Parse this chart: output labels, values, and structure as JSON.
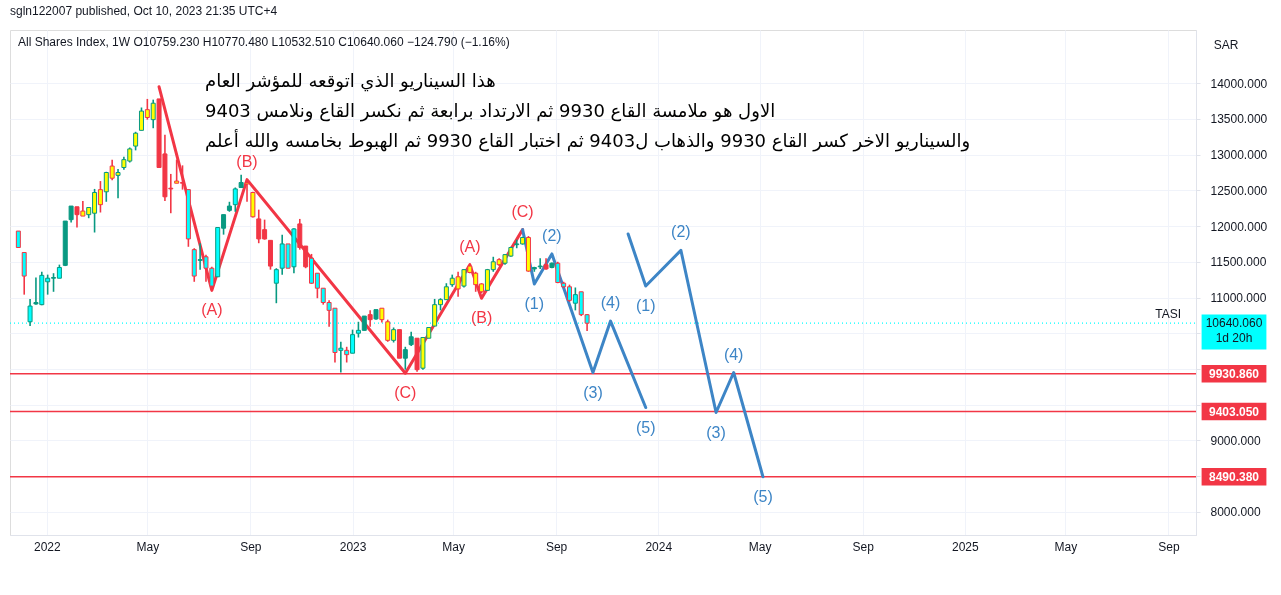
{
  "chart_data": {
    "type": "candlestick",
    "title": "sgln122007 published, Oct 10, 2023 21:35 UTC+4",
    "subtitle": "All Shares Index, 1W  O10759.230 H10770.480 L10532.510 C10640.060 −124.790 (−1.16%)",
    "ylabel": "SAR",
    "x": [
      "2021-11-28",
      "2021-12-05",
      "2021-12-12",
      "2021-12-19",
      "2021-12-26",
      "2022-01-02",
      "2022-01-09",
      "2022-01-16",
      "2022-01-23",
      "2022-01-30",
      "2022-02-06",
      "2022-02-13",
      "2022-02-20",
      "2022-02-27",
      "2022-03-06",
      "2022-03-13",
      "2022-03-20",
      "2022-03-27",
      "2022-04-03",
      "2022-04-10",
      "2022-04-17",
      "2022-04-24",
      "2022-05-01",
      "2022-05-08",
      "2022-05-15",
      "2022-05-22",
      "2022-05-29",
      "2022-06-05",
      "2022-06-12",
      "2022-06-19",
      "2022-06-26",
      "2022-07-03",
      "2022-07-10",
      "2022-07-17",
      "2022-07-24",
      "2022-07-31",
      "2022-08-07",
      "2022-08-14",
      "2022-08-21",
      "2022-08-28",
      "2022-09-04",
      "2022-09-11",
      "2022-09-18",
      "2022-09-25",
      "2022-10-02",
      "2022-10-09",
      "2022-10-16",
      "2022-10-23",
      "2022-10-30",
      "2022-11-06",
      "2022-11-13",
      "2022-11-20",
      "2022-11-27",
      "2022-12-04",
      "2022-12-11",
      "2022-12-18",
      "2022-12-25",
      "2023-01-01",
      "2023-01-08",
      "2023-01-15",
      "2023-01-22",
      "2023-01-29",
      "2023-02-05",
      "2023-02-12",
      "2023-02-19",
      "2023-02-26",
      "2023-03-05",
      "2023-03-12",
      "2023-03-19",
      "2023-03-26",
      "2023-04-02",
      "2023-04-09",
      "2023-04-16",
      "2023-04-23",
      "2023-04-30",
      "2023-05-07",
      "2023-05-14",
      "2023-05-21",
      "2023-05-28",
      "2023-06-04",
      "2023-06-11",
      "2023-06-18",
      "2023-06-25",
      "2023-07-02",
      "2023-07-09",
      "2023-07-16",
      "2023-07-23",
      "2023-07-30",
      "2023-08-06",
      "2023-08-13",
      "2023-08-20",
      "2023-08-27",
      "2023-09-03",
      "2023-09-10",
      "2023-09-17",
      "2023-09-24",
      "2023-10-01",
      "2023-10-08"
    ],
    "ohlc": [
      [
        11930,
        11930,
        11700,
        11700
      ],
      [
        11630,
        11630,
        11040,
        11300
      ],
      [
        10660,
        10980,
        10600,
        10880
      ],
      [
        10910,
        11280,
        10900,
        10930
      ],
      [
        10900,
        11360,
        10890,
        11310
      ],
      [
        11220,
        11320,
        11040,
        11270
      ],
      [
        11270,
        11340,
        11080,
        11280
      ],
      [
        11270,
        11460,
        11270,
        11420
      ],
      [
        11450,
        12070,
        11440,
        12070
      ],
      [
        12090,
        12280,
        12050,
        12280
      ],
      [
        12270,
        12270,
        11980,
        12160
      ],
      [
        12210,
        12350,
        12140,
        12140
      ],
      [
        12160,
        12260,
        12110,
        12260
      ],
      [
        12180,
        12520,
        11910,
        12470
      ],
      [
        12510,
        12630,
        12190,
        12300
      ],
      [
        12480,
        12760,
        12340,
        12750
      ],
      [
        12840,
        12930,
        12640,
        12670
      ],
      [
        12710,
        12800,
        12390,
        12750
      ],
      [
        12820,
        12970,
        12790,
        12930
      ],
      [
        12910,
        13100,
        12890,
        13080
      ],
      [
        13120,
        13320,
        13060,
        13300
      ],
      [
        13340,
        13660,
        13340,
        13610
      ],
      [
        13630,
        13780,
        13490,
        13520
      ],
      [
        13490,
        13770,
        13370,
        13720
      ],
      [
        13780,
        13780,
        12820,
        12820
      ],
      [
        13010,
        13280,
        12350,
        12410
      ],
      [
        12530,
        12730,
        12180,
        12520
      ],
      [
        12630,
        12930,
        12600,
        12600
      ],
      [
        12610,
        12850,
        12510,
        12600
      ],
      [
        12510,
        12510,
        11710,
        11820
      ],
      [
        11670,
        11690,
        11220,
        11300
      ],
      [
        11520,
        11760,
        11390,
        11530
      ],
      [
        11570,
        11600,
        11220,
        11410
      ],
      [
        11410,
        11430,
        11110,
        11160
      ],
      [
        11290,
        11980,
        11290,
        11980
      ],
      [
        11970,
        12160,
        11880,
        12160
      ],
      [
        12220,
        12340,
        12200,
        12280
      ],
      [
        12300,
        12540,
        12200,
        12520
      ],
      [
        12540,
        12720,
        12540,
        12610
      ],
      [
        12610,
        12660,
        12340,
        12590
      ],
      [
        12470,
        12480,
        12120,
        12130
      ],
      [
        12100,
        12230,
        11760,
        11820
      ],
      [
        11950,
        12090,
        11810,
        11820
      ],
      [
        11800,
        11800,
        11390,
        11440
      ],
      [
        11200,
        11410,
        10920,
        11390
      ],
      [
        11410,
        11880,
        11320,
        11750
      ],
      [
        11750,
        11750,
        11410,
        11410
      ],
      [
        11430,
        11970,
        11340,
        11960
      ],
      [
        12030,
        12100,
        11670,
        11700
      ],
      [
        11720,
        11720,
        11410,
        11430
      ],
      [
        11550,
        11610,
        11190,
        11200
      ],
      [
        11340,
        11340,
        10990,
        11130
      ],
      [
        11130,
        11130,
        10900,
        10930
      ],
      [
        10930,
        10960,
        10590,
        10820
      ],
      [
        10850,
        10850,
        10090,
        10230
      ],
      [
        10260,
        10380,
        9950,
        10290
      ],
      [
        10260,
        10310,
        10090,
        10200
      ],
      [
        10220,
        10550,
        10220,
        10480
      ],
      [
        10500,
        10660,
        10440,
        10540
      ],
      [
        10540,
        10740,
        10540,
        10740
      ],
      [
        10760,
        10820,
        10590,
        10690
      ],
      [
        10700,
        10830,
        10690,
        10830
      ],
      [
        10850,
        10850,
        10650,
        10690
      ],
      [
        10660,
        10690,
        10380,
        10400
      ],
      [
        10400,
        10580,
        10370,
        10550
      ],
      [
        10550,
        10550,
        10150,
        10150
      ],
      [
        10150,
        10310,
        9990,
        10270
      ],
      [
        10340,
        10520,
        10320,
        10450
      ],
      [
        10430,
        10430,
        9960,
        9990
      ],
      [
        10010,
        10440,
        9990,
        10440
      ],
      [
        10430,
        10580,
        10430,
        10580
      ],
      [
        10600,
        10980,
        10600,
        10900
      ],
      [
        10900,
        10990,
        10820,
        10970
      ],
      [
        10970,
        11200,
        10970,
        11150
      ],
      [
        11180,
        11320,
        11150,
        11270
      ],
      [
        11290,
        11360,
        11010,
        11120
      ],
      [
        11160,
        11400,
        11140,
        11390
      ],
      [
        11440,
        11470,
        11340,
        11350
      ],
      [
        11340,
        11360,
        11080,
        11180
      ],
      [
        11190,
        11200,
        11060,
        11080
      ],
      [
        11100,
        11400,
        11100,
        11390
      ],
      [
        11390,
        11570,
        11360,
        11500
      ],
      [
        11530,
        11550,
        11440,
        11460
      ],
      [
        11480,
        11610,
        11460,
        11600
      ],
      [
        11580,
        11710,
        11570,
        11700
      ],
      [
        11740,
        11810,
        11690,
        11750
      ],
      [
        11750,
        11850,
        11740,
        11840
      ],
      [
        11840,
        11860,
        11360,
        11370
      ],
      [
        11400,
        11430,
        11360,
        11420
      ],
      [
        11430,
        11550,
        11400,
        11440
      ],
      [
        11460,
        11550,
        11390,
        11400
      ],
      [
        11420,
        11490,
        11410,
        11480
      ],
      [
        11480,
        11500,
        11200,
        11210
      ],
      [
        11200,
        11220,
        11140,
        11150
      ],
      [
        11150,
        11180,
        10940,
        10960
      ],
      [
        10920,
        11140,
        10820,
        11040
      ],
      [
        11080,
        11080,
        10740,
        10760
      ],
      [
        10759.23,
        10770.48,
        10532.51,
        10640.06
      ]
    ],
    "colors": [
      "#00ffff",
      "#00ffff",
      "#00ffff",
      "#089981",
      "#00ffff",
      "#00ffff",
      "#089981",
      "#00ffff",
      "#089981",
      "#089981",
      "#f23645",
      "#ffff00",
      "#ffff00",
      "#ffff00",
      "#ffff00",
      "#ffff00",
      "#ffff00",
      "#ffff00",
      "#ffff00",
      "#ffff00",
      "#ffff00",
      "#ffff00",
      "#ffff00",
      "#ffff00",
      "#f23645",
      "#f23645",
      "#f23645",
      "#ffff00",
      "#f23645",
      "#00ffff",
      "#00ffff",
      "#089981",
      "#00ffff",
      "#00ffff",
      "#00ffff",
      "#089981",
      "#089981",
      "#00ffff",
      "#089981",
      "#ffff00",
      "#ffff00",
      "#f23645",
      "#f23645",
      "#f23645",
      "#00ffff",
      "#00ffff",
      "#00ffff",
      "#00ffff",
      "#f23645",
      "#f23645",
      "#00ffff",
      "#00ffff",
      "#00ffff",
      "#00ffff",
      "#00ffff",
      "#00ffff",
      "#00ffff",
      "#00ffff",
      "#00ffff",
      "#089981",
      "#f23645",
      "#089981",
      "#ffff00",
      "#ffff00",
      "#ffff00",
      "#f23645",
      "#089981",
      "#089981",
      "#f23645",
      "#ffff00",
      "#ffff00",
      "#ffff00",
      "#ffff00",
      "#ffff00",
      "#ffff00",
      "#ffff00",
      "#ffff00",
      "#ffff00",
      "#ffff00",
      "#ffff00",
      "#ffff00",
      "#ffff00",
      "#ffff00",
      "#ffff00",
      "#ffff00",
      "#089981",
      "#ffff00",
      "#ffff00",
      "#089981",
      "#089981",
      "#f23645",
      "#089981",
      "#00ffff",
      "#00ffff",
      "#00ffff",
      "#00ffff",
      "#00ffff",
      "#00ffff"
    ],
    "series": [
      {
        "type": "line",
        "color": "#f23645",
        "x": [
          "2022-05-15",
          "2022-07-17",
          "2022-08-28",
          "2023-03-05",
          "2023-05-21",
          "2023-06-04",
          "2023-07-23"
        ],
        "values": [
          13950,
          11100,
          12650,
          9940,
          11460,
          10990,
          11950
        ]
      },
      {
        "type": "line",
        "color": "#3d85c6",
        "x": [
          "2023-07-23",
          "2023-08-06",
          "2023-08-27",
          "2023-10-15",
          "2023-11-05",
          "2023-12-17"
        ],
        "values": [
          11950,
          11190,
          11610,
          9950,
          10670,
          9460
        ]
      },
      {
        "type": "line",
        "color": "#3d85c6",
        "x": [
          "2023-11-26",
          "2023-12-17",
          "2024-01-28",
          "2024-03-10",
          "2024-03-31",
          "2024-05-05"
        ],
        "values": [
          11890,
          11160,
          11660,
          9390,
          9950,
          8490
        ]
      }
    ],
    "ref_lines": [
      {
        "axis": "y",
        "value": 10640.06,
        "label": "10640.060\n1d 20h",
        "color": "#00ffff",
        "line_style": "dotted"
      },
      {
        "axis": "y",
        "value": 9930.86,
        "label": "9930.860",
        "color": "#f23645"
      },
      {
        "axis": "y",
        "value": 9403.05,
        "label": "9403.050",
        "color": "#f23645"
      },
      {
        "axis": "y",
        "value": 8490.38,
        "label": "8490.380",
        "color": "#f23645"
      }
    ],
    "annotations": [
      "هذا السيناريو الذي اتوقعه للمؤشر العام",
      "الاول هو ملامسة القاع 9930 ثم الارتداد برابعة ثم نكسر القاع ونلامس 9403",
      "والسيناريو الاخر كسر القاع 9930 والذهاب ل9403 ثم اختبار القاع 9930 ثم الهبوط بخامسه   والله أعلم",
      {
        "text": "TASI",
        "x": "2025-09-28",
        "y": 10640.06
      },
      {
        "text": "(A)",
        "x": "2022-07-17",
        "y": 11100
      },
      {
        "text": "(B)",
        "x": "2022-08-28",
        "y": 12650
      },
      {
        "text": "(C)",
        "x": "2023-03-05",
        "y": 9940
      },
      {
        "text": "(A)",
        "x": "2023-05-21",
        "y": 11460
      },
      {
        "text": "(B)",
        "x": "2023-06-04",
        "y": 10990
      },
      {
        "text": "(C)",
        "x": "2023-07-23",
        "y": 11950
      },
      {
        "text": "(1)",
        "x": "2023-08-06",
        "y": 11190
      },
      {
        "text": "(2)",
        "x": "2023-08-27",
        "y": 11610
      },
      {
        "text": "(3)",
        "x": "2023-10-15",
        "y": 9950
      },
      {
        "text": "(4)",
        "x": "2023-11-05",
        "y": 10670
      },
      {
        "text": "(5)",
        "x": "2023-12-17",
        "y": 9460
      },
      {
        "text": "(1)",
        "x": "2023-12-17",
        "y": 11160
      },
      {
        "text": "(2)",
        "x": "2024-01-28",
        "y": 11660
      },
      {
        "text": "(3)",
        "x": "2024-03-10",
        "y": 9390
      },
      {
        "text": "(4)",
        "x": "2024-03-31",
        "y": 9950
      },
      {
        "text": "(5)",
        "x": "2024-05-05",
        "y": 8490
      }
    ],
    "xlim": [
      "2021-11-24",
      "2025-09-28"
    ],
    "xticks": [
      {
        "value": "2022-01-01",
        "label": "2022"
      },
      {
        "value": "2022-05-01",
        "label": "May"
      },
      {
        "value": "2022-09-01",
        "label": "Sep"
      },
      {
        "value": "2023-01-01",
        "label": "2023"
      },
      {
        "value": "2023-05-01",
        "label": "May"
      },
      {
        "value": "2023-09-01",
        "label": "Sep"
      },
      {
        "value": "2024-01-01",
        "label": "2024"
      },
      {
        "value": "2024-05-01",
        "label": "May"
      },
      {
        "value": "2024-09-01",
        "label": "Sep"
      },
      {
        "value": "2025-01-01",
        "label": "2025"
      },
      {
        "value": "2025-05-01",
        "label": "May"
      },
      {
        "value": "2025-09-01",
        "label": "Sep"
      }
    ],
    "ylim": [
      7675,
      14745
    ],
    "yticks": [
      {
        "value": 8000,
        "label": "8000.000"
      },
      {
        "value": 8500,
        "label": null
      },
      {
        "value": 9000,
        "label": "9000.000"
      },
      {
        "value": 9500,
        "label": null
      },
      {
        "value": 10000,
        "label": null
      },
      {
        "value": 10500,
        "label": null
      },
      {
        "value": 11000,
        "label": "11000.000"
      },
      {
        "value": 11500,
        "label": "11500.000"
      },
      {
        "value": 12000,
        "label": "12000.000"
      },
      {
        "value": 12500,
        "label": "12500.000"
      },
      {
        "value": 13000,
        "label": "13000.000"
      },
      {
        "value": 13500,
        "label": "13500.000"
      },
      {
        "value": 14000,
        "label": "14000.000"
      }
    ],
    "grid": true
  }
}
